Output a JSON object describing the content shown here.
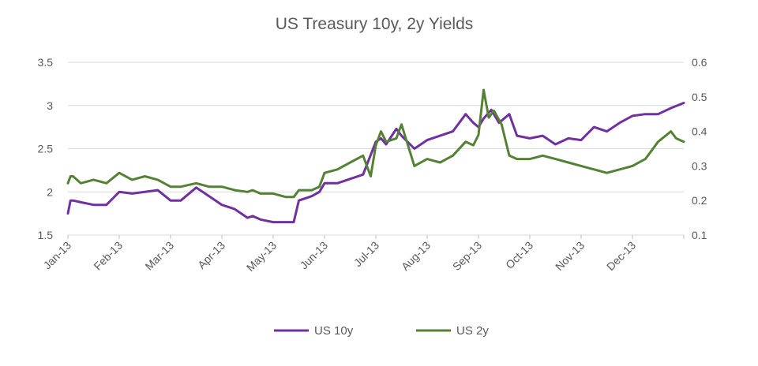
{
  "chart_data": {
    "type": "line",
    "title": "US Treasury 10y, 2y Yields",
    "xlabel": "",
    "ylabel": "",
    "x_tick_labels": [
      "Jan-13",
      "Feb-13",
      "Mar-13",
      "Apr-13",
      "May-13",
      "Jun-13",
      "Jul-13",
      "Aug-13",
      "Sep-13",
      "Oct-13",
      "Nov-13",
      "Dec-13"
    ],
    "x_range": [
      0,
      12
    ],
    "y_left": {
      "range": [
        1.5,
        3.5
      ],
      "ticks": [
        1.5,
        2,
        2.5,
        3,
        3.5
      ],
      "labels": [
        "1.5",
        "2",
        "2.5",
        "3",
        "3.5"
      ]
    },
    "y_right": {
      "range": [
        0.1,
        0.6
      ],
      "ticks": [
        0.1,
        0.2,
        0.3,
        0.4,
        0.5,
        0.6
      ],
      "labels": [
        "0.1",
        "0.2",
        "0.3",
        "0.4",
        "0.5",
        "0.6"
      ]
    },
    "grid": true,
    "legend_position": "bottom",
    "series": [
      {
        "name": "US 10y",
        "axis": "left",
        "color": "#7030a0",
        "x": [
          0,
          0.05,
          0.1,
          0.25,
          0.5,
          0.75,
          1.0,
          1.25,
          1.5,
          1.75,
          2.0,
          2.2,
          2.5,
          2.75,
          3.0,
          3.25,
          3.5,
          3.6,
          3.75,
          4.0,
          4.25,
          4.4,
          4.5,
          4.75,
          4.9,
          5.0,
          5.25,
          5.5,
          5.75,
          6.0,
          6.1,
          6.2,
          6.4,
          6.5,
          6.75,
          7.0,
          7.25,
          7.5,
          7.75,
          7.9,
          8.0,
          8.1,
          8.25,
          8.4,
          8.6,
          8.75,
          9.0,
          9.25,
          9.5,
          9.75,
          10.0,
          10.25,
          10.5,
          10.75,
          11.0,
          11.25,
          11.5,
          11.75,
          12.0
        ],
        "values": [
          1.75,
          1.9,
          1.9,
          1.88,
          1.85,
          1.85,
          2.0,
          1.98,
          2.0,
          2.02,
          1.9,
          1.9,
          2.05,
          1.95,
          1.85,
          1.8,
          1.7,
          1.72,
          1.68,
          1.65,
          1.65,
          1.65,
          1.9,
          1.95,
          2.0,
          2.1,
          2.1,
          2.15,
          2.2,
          2.58,
          2.62,
          2.55,
          2.73,
          2.65,
          2.5,
          2.6,
          2.65,
          2.7,
          2.9,
          2.8,
          2.75,
          2.85,
          2.95,
          2.8,
          2.9,
          2.65,
          2.62,
          2.65,
          2.55,
          2.62,
          2.6,
          2.75,
          2.7,
          2.8,
          2.88,
          2.9,
          2.9,
          2.97,
          3.03
        ]
      },
      {
        "name": "US 2y",
        "axis": "right",
        "color": "#548235",
        "x": [
          0,
          0.05,
          0.1,
          0.25,
          0.5,
          0.75,
          1.0,
          1.25,
          1.5,
          1.75,
          2.0,
          2.2,
          2.5,
          2.75,
          3.0,
          3.25,
          3.5,
          3.6,
          3.75,
          4.0,
          4.25,
          4.4,
          4.5,
          4.75,
          4.9,
          5.0,
          5.25,
          5.5,
          5.75,
          5.9,
          6.0,
          6.1,
          6.2,
          6.4,
          6.5,
          6.75,
          7.0,
          7.25,
          7.5,
          7.75,
          7.9,
          8.0,
          8.1,
          8.2,
          8.3,
          8.45,
          8.6,
          8.75,
          9.0,
          9.25,
          9.5,
          9.75,
          10.0,
          10.25,
          10.5,
          10.75,
          11.0,
          11.25,
          11.5,
          11.75,
          11.85,
          12.0
        ],
        "values": [
          0.25,
          0.27,
          0.27,
          0.25,
          0.26,
          0.25,
          0.28,
          0.26,
          0.27,
          0.26,
          0.24,
          0.24,
          0.25,
          0.24,
          0.24,
          0.23,
          0.225,
          0.23,
          0.22,
          0.22,
          0.21,
          0.21,
          0.23,
          0.23,
          0.24,
          0.28,
          0.29,
          0.31,
          0.33,
          0.27,
          0.36,
          0.4,
          0.37,
          0.38,
          0.42,
          0.3,
          0.32,
          0.31,
          0.33,
          0.37,
          0.36,
          0.39,
          0.52,
          0.44,
          0.46,
          0.42,
          0.33,
          0.32,
          0.32,
          0.33,
          0.32,
          0.31,
          0.3,
          0.29,
          0.28,
          0.29,
          0.3,
          0.32,
          0.37,
          0.4,
          0.38,
          0.37
        ]
      }
    ]
  }
}
